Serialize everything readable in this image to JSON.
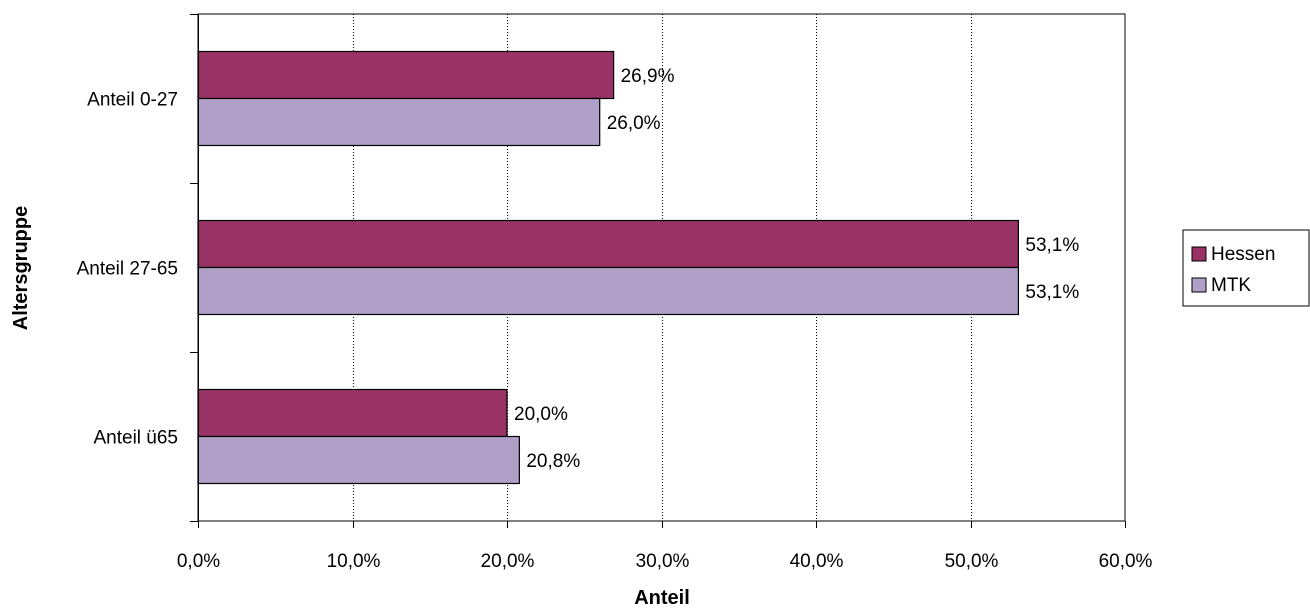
{
  "chart_data": {
    "type": "bar",
    "orientation": "horizontal",
    "title": "",
    "xlabel": "Anteil",
    "ylabel": "Altersgruppe",
    "xlim": [
      0,
      60
    ],
    "xticks": [
      "0,0%",
      "10,0%",
      "20,0%",
      "30,0%",
      "40,0%",
      "50,0%",
      "60,0%"
    ],
    "categories": [
      "Anteil 0-27",
      "Anteil 27-65",
      "Anteil ü65"
    ],
    "series": [
      {
        "name": "Hessen",
        "color": "#993366",
        "values": [
          26.9,
          53.1,
          20.0
        ],
        "labels": [
          "26,9%",
          "53,1%",
          "20,0%"
        ]
      },
      {
        "name": "MTK",
        "color": "#B0A0C8",
        "values": [
          26.0,
          53.1,
          20.8
        ],
        "labels": [
          "26,0%",
          "53,1%",
          "20,8%"
        ]
      }
    ],
    "grid": "vertical-dotted",
    "legend": "right"
  }
}
